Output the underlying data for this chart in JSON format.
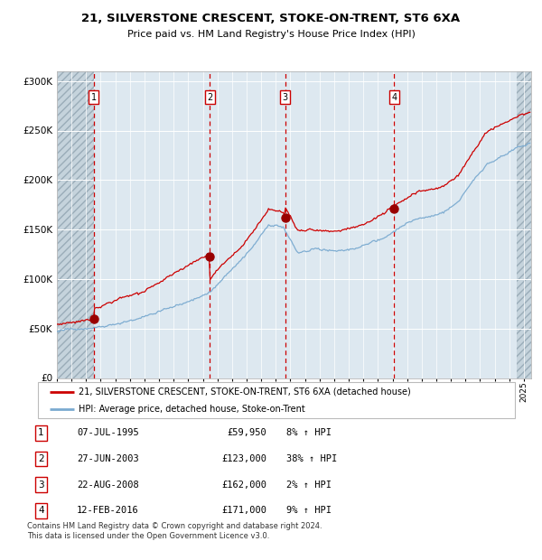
{
  "title": "21, SILVERSTONE CRESCENT, STOKE-ON-TRENT, ST6 6XA",
  "subtitle": "Price paid vs. HM Land Registry's House Price Index (HPI)",
  "legend_line1": "21, SILVERSTONE CRESCENT, STOKE-ON-TRENT, ST6 6XA (detached house)",
  "legend_line2": "HPI: Average price, detached house, Stoke-on-Trent",
  "footer1": "Contains HM Land Registry data © Crown copyright and database right 2024.",
  "footer2": "This data is licensed under the Open Government Licence v3.0.",
  "transactions": [
    {
      "num": 1,
      "date": "07-JUL-1995",
      "price": 59950,
      "pct": "8%",
      "dir": "↑"
    },
    {
      "num": 2,
      "date": "27-JUN-2003",
      "price": 123000,
      "pct": "38%",
      "dir": "↑"
    },
    {
      "num": 3,
      "date": "22-AUG-2008",
      "price": 162000,
      "pct": "2%",
      "dir": "↑"
    },
    {
      "num": 4,
      "date": "12-FEB-2016",
      "price": 171000,
      "pct": "9%",
      "dir": "↑"
    }
  ],
  "transaction_dates_decimal": [
    1995.52,
    2003.49,
    2008.64,
    2016.12
  ],
  "transaction_prices": [
    59950,
    123000,
    162000,
    171000
  ],
  "red_color": "#cc0000",
  "blue_color": "#7aaad0",
  "bg_color": "#dde8f0",
  "grid_color": "#ffffff",
  "vline_color": "#cc0000",
  "marker_color": "#990000",
  "ylim": [
    0,
    310000
  ],
  "xlim_start": 1993.0,
  "xlim_end": 2025.5,
  "hatch_right_start": 2024.5
}
